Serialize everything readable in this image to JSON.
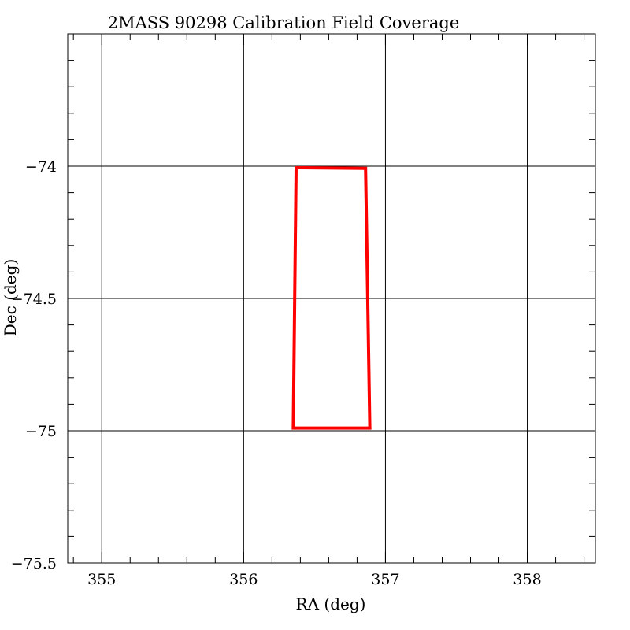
{
  "chart_data": {
    "type": "line",
    "title": "2MASS 90298 Calibration Field Coverage",
    "xlabel": "RA (deg)",
    "ylabel": "Dec (deg)",
    "xlim": [
      354.76,
      358.48
    ],
    "ylim": [
      -75.5,
      -73.5
    ],
    "x_ticks": [
      355,
      356,
      357,
      358
    ],
    "x_tick_labels": [
      "355",
      "356",
      "357",
      "358"
    ],
    "x_minor_step": 0.2,
    "y_ticks": [
      -74,
      -74.5,
      -75,
      -75.5
    ],
    "y_tick_labels": [
      "−74",
      "−74.5",
      "−75",
      "−75.5"
    ],
    "y_minor_step": 0.1,
    "grid": true,
    "series": [
      {
        "color": "#ff0000",
        "x": [
          356.37,
          356.86,
          356.89,
          356.35,
          356.37
        ],
        "y": [
          -74.006,
          -74.008,
          -74.99,
          -74.99,
          -74.006
        ]
      }
    ]
  }
}
